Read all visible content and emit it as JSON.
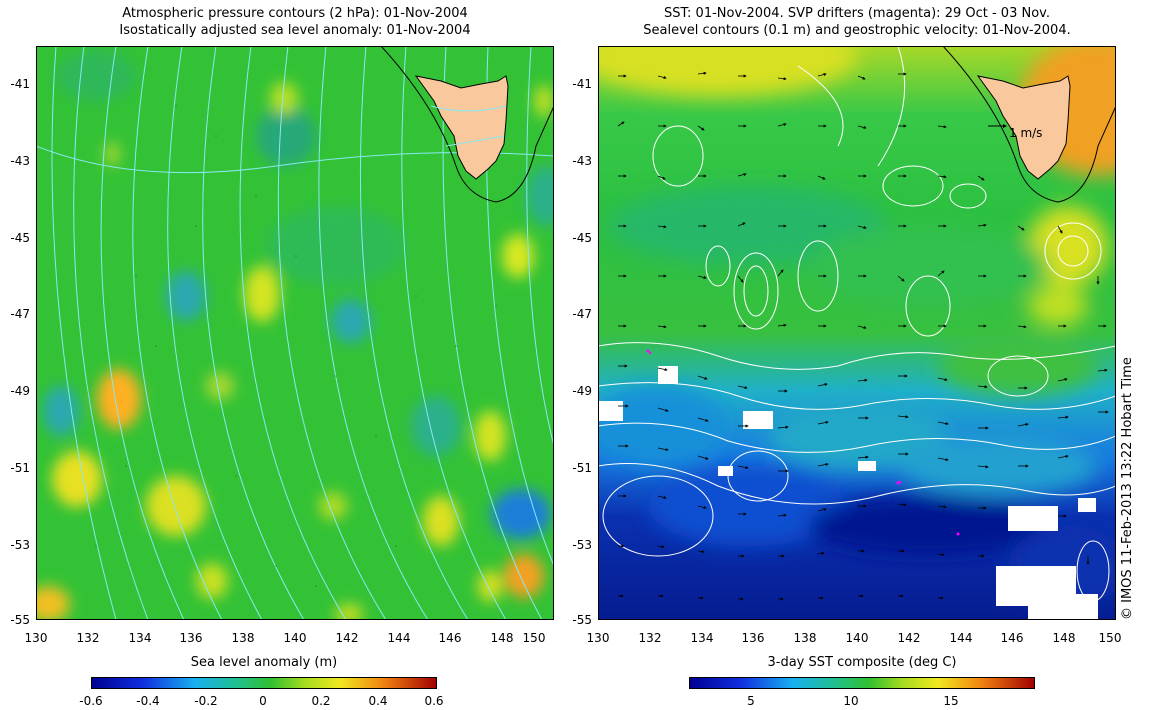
{
  "left_panel": {
    "title_lines": [
      "Atmospheric pressure contours (2 hPa): 01-Nov-2004",
      "Isostatically adjusted sea level anomaly: 01-Nov-2004"
    ],
    "y_ticks": [
      "-41",
      "-43",
      "-45",
      "-47",
      "-49",
      "-51",
      "-53",
      "-55"
    ],
    "x_ticks": [
      "130",
      "132",
      "134",
      "136",
      "138",
      "140",
      "142",
      "144",
      "146",
      "148",
      "150"
    ],
    "colorbar": {
      "title": "Sea level anomaly (m)",
      "ticks": [
        "-0.6",
        "-0.4",
        "-0.2",
        "0",
        "0.2",
        "0.4",
        "0.6"
      ],
      "range": [
        -0.6,
        0.6
      ]
    }
  },
  "right_panel": {
    "title_lines": [
      "SST: 01-Nov-2004. SVP drifters (magenta): 29 Oct - 03 Nov.",
      "Sealevel contours (0.1 m) and geostrophic velocity: 01-Nov-2004."
    ],
    "y_ticks": [
      "-41",
      "-43",
      "-45",
      "-47",
      "-49",
      "-51",
      "-53",
      "-55"
    ],
    "x_ticks": [
      "130",
      "132",
      "134",
      "136",
      "138",
      "140",
      "142",
      "144",
      "146",
      "148",
      "150"
    ],
    "velocity_label": "1 m/s",
    "colorbar": {
      "title": "3-day SST composite (deg C)",
      "ticks": [
        "5",
        "10",
        "15"
      ],
      "range": [
        2,
        19
      ]
    }
  },
  "credit": "© IMOS 11-Feb-2013 13:22 Hobart Time",
  "colors": {
    "land": "#f9c89c",
    "pressure_contour": "#88e8f0",
    "sealevel_contour": "#ffffff",
    "arrow": "#000000"
  }
}
